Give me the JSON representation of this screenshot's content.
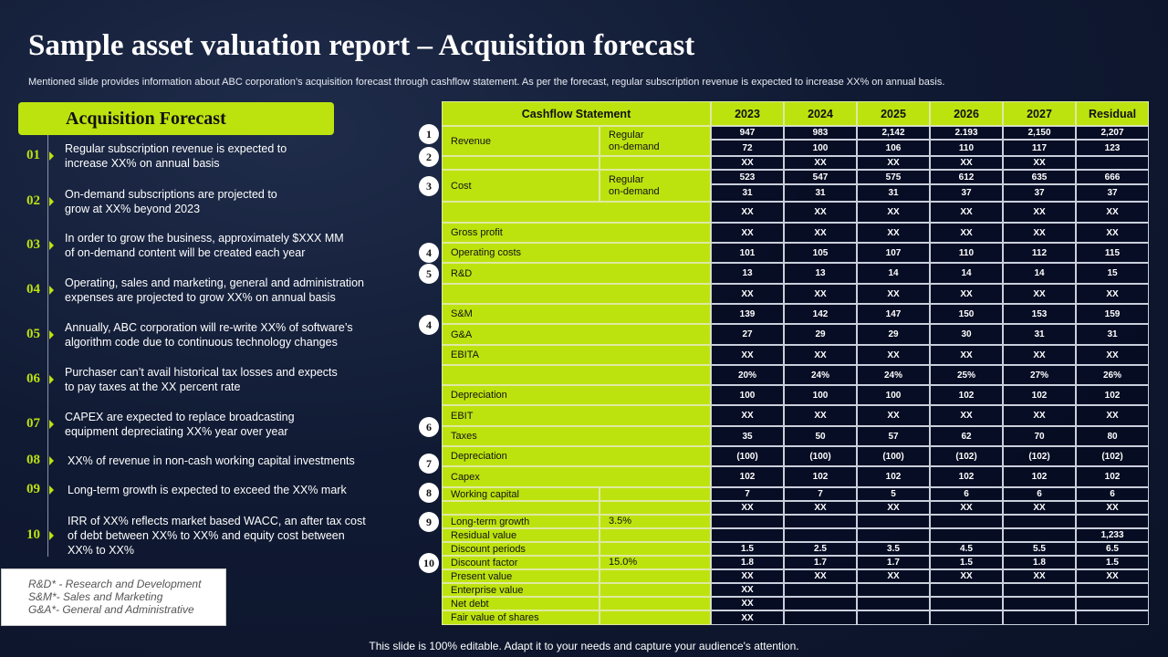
{
  "title": "Sample asset valuation report – Acquisition forecast",
  "subtitle": "Mentioned slide provides information about ABC corporation’s acquisition forecast through cashflow statement. As per the forecast, regular subscription revenue is expected to increase XX% on annual basis.",
  "panel": {
    "heading": "Acquisition  Forecast",
    "points": [
      {
        "num": "01",
        "text": "Regular subscription revenue  is expected to\nincrease XX%  on annual basis"
      },
      {
        "num": "02",
        "text": "On-demand  subscriptions are projected to\ngrow at XX%  beyond 2023"
      },
      {
        "num": "03",
        "text": "In order to grow the business, approximately $XXX  MM\nof on-demand  content will be created each year"
      },
      {
        "num": "04",
        "text": "Operating, sales and marketing, general and administration\nexpenses are projected to grow XX%  on annual basis"
      },
      {
        "num": "05",
        "text": "Annually, ABC corporation will re-write  XX%  of software’s\nalgorithm code due to continuous technology changes"
      },
      {
        "num": "06",
        "text": "Purchaser can’t avail historical tax losses and expects\nto pay taxes at the XX  percent rate"
      },
      {
        "num": "07",
        "text": "CAPEX are expected to replace  broadcasting\nequipment depreciating XX%  year over year"
      },
      {
        "num": "08",
        "text": "XX%  of revenue  in non-cash working capital investments"
      },
      {
        "num": "09",
        "text": "Long-term  growth  is expected to exceed the XX%  mark"
      },
      {
        "num": "10",
        "text": "IRR of XX%  reflects market based WACC, an after tax cost\nof debt between  XX%  to XX%  and equity cost between\nXX%  to XX%"
      }
    ]
  },
  "legend": [
    "R&D* - Research and Development",
    "S&M*- Sales and Marketing",
    "G&A*- General and Administrative"
  ],
  "footer": "This slide is 100% editable. Adapt it to your needs and capture your audience's attention.",
  "table": {
    "header": [
      "Cashflow Statement",
      "2023",
      "2024",
      "2025",
      "2026",
      "2027",
      "Residual"
    ],
    "rows": [
      {
        "label": "Revenue",
        "sub": "Regular\non-demand",
        "span": 2,
        "values": [
          "947",
          "983",
          "2,142",
          "2.193",
          "2,150",
          "2,207"
        ]
      },
      {
        "values": [
          "72",
          "100",
          "106",
          "110",
          "117",
          "123"
        ]
      },
      {
        "label": "",
        "sub": "",
        "values": [
          "XX",
          "XX",
          "XX",
          "XX",
          "XX",
          ""
        ]
      },
      {
        "label": "Cost",
        "sub": "Regular\non-demand",
        "span": 2,
        "values": [
          "523",
          "547",
          "575",
          "612",
          "635",
          "666"
        ]
      },
      {
        "values": [
          "31",
          "31",
          "31",
          "37",
          "37",
          "37"
        ]
      },
      {
        "label": "",
        "values": [
          "XX",
          "XX",
          "XX",
          "XX",
          "XX",
          "XX"
        ]
      },
      {
        "label": "Gross profit",
        "values": [
          "XX",
          "XX",
          "XX",
          "XX",
          "XX",
          "XX"
        ]
      },
      {
        "label": "Operating costs",
        "values": [
          "101",
          "105",
          "107",
          "110",
          "112",
          "115"
        ]
      },
      {
        "label": "R&D",
        "values": [
          "13",
          "13",
          "14",
          "14",
          "14",
          "15"
        ]
      },
      {
        "label": "",
        "values": [
          "XX",
          "XX",
          "XX",
          "XX",
          "XX",
          "XX"
        ]
      },
      {
        "label": "S&M",
        "values": [
          "139",
          "142",
          "147",
          "150",
          "153",
          "159"
        ]
      },
      {
        "label": "G&A",
        "values": [
          "27",
          "29",
          "29",
          "30",
          "31",
          "31"
        ]
      },
      {
        "label": "EBITA",
        "values": [
          "XX",
          "XX",
          "XX",
          "XX",
          "XX",
          "XX"
        ]
      },
      {
        "label": "",
        "values": [
          "20%",
          "24%",
          "24%",
          "25%",
          "27%",
          "26%"
        ]
      },
      {
        "label": "Depreciation",
        "values": [
          "100",
          "100",
          "100",
          "102",
          "102",
          "102"
        ]
      },
      {
        "label": "EBIT",
        "values": [
          "XX",
          "XX",
          "XX",
          "XX",
          "XX",
          "XX"
        ]
      },
      {
        "label": "Taxes",
        "values": [
          "35",
          "50",
          "57",
          "62",
          "70",
          "80"
        ]
      },
      {
        "label": "Depreciation",
        "values": [
          "(100)",
          "(100)",
          "(100)",
          "(102)",
          "(102)",
          "(102)"
        ]
      },
      {
        "label": "Capex",
        "values": [
          "102",
          "102",
          "102",
          "102",
          "102",
          "102"
        ]
      },
      {
        "label": "Working capital",
        "sub": "",
        "values": [
          "7",
          "7",
          "5",
          "6",
          "6",
          "6"
        ]
      },
      {
        "label": "",
        "sub": "",
        "values": [
          "XX",
          "XX",
          "XX",
          "XX",
          "XX",
          "XX"
        ]
      },
      {
        "label": "Long-term growth",
        "sub": "3.5%",
        "values": [
          "",
          "",
          "",
          "",
          "",
          ""
        ]
      },
      {
        "label": "Residual value",
        "sub": "",
        "values": [
          "",
          "",
          "",
          "",
          "",
          "1,233"
        ]
      },
      {
        "label": "Discount periods",
        "sub": "",
        "values": [
          "1.5",
          "2.5",
          "3.5",
          "4.5",
          "5.5",
          "6.5"
        ]
      },
      {
        "label": "Discount factor",
        "sub": "15.0%",
        "values": [
          "1.8",
          "1.7",
          "1.7",
          "1.5",
          "1.8",
          "1.5"
        ]
      },
      {
        "label": "Present value",
        "sub": "",
        "values": [
          "XX",
          "XX",
          "XX",
          "XX",
          "XX",
          "XX"
        ]
      },
      {
        "label": "Enterprise value",
        "sub": "",
        "values": [
          "XX",
          "",
          "",
          "",
          "",
          ""
        ]
      },
      {
        "label": "Net debt",
        "sub": "",
        "values": [
          "XX",
          "",
          "",
          "",
          "",
          ""
        ]
      },
      {
        "label": "Fair value of shares",
        "sub": "",
        "values": [
          "XX",
          "",
          "",
          "",
          "",
          ""
        ]
      }
    ],
    "markers": [
      "1",
      "2",
      "3",
      "4",
      "5",
      "4",
      "6",
      "7",
      "8",
      "9",
      "10"
    ]
  },
  "colors": {
    "accent": "#bde30f",
    "background": "#101a33"
  }
}
